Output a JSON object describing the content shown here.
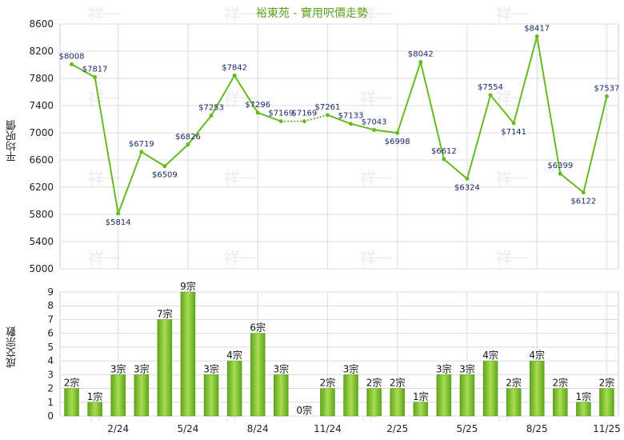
{
  "chart_data": [
    {
      "type": "line",
      "title": "裕東苑 - 實用呎價走勢",
      "ylabel": "平均呎價",
      "ylim": [
        5000,
        8600
      ],
      "yticks": [
        5000,
        5400,
        5800,
        6200,
        6600,
        7000,
        7400,
        7800,
        8200,
        8600
      ],
      "xtick_labels": [
        "2/24",
        "5/24",
        "8/24",
        "11/24",
        "2/25",
        "5/25",
        "8/25",
        "11/25"
      ],
      "x": [
        "12/23",
        "1/24",
        "2/24",
        "3/24",
        "4/24",
        "5/24",
        "6/24",
        "7/24",
        "8/24",
        "9/24",
        "10/24",
        "11/24",
        "12/24",
        "1/25",
        "2/25",
        "3/25",
        "4/25",
        "5/25",
        "6/25",
        "7/25",
        "8/25",
        "9/25",
        "10/25",
        "11/25"
      ],
      "values": [
        8008,
        7817,
        5814,
        6719,
        6509,
        6826,
        7253,
        7842,
        7296,
        7169,
        7169,
        7261,
        7133,
        7043,
        6998,
        8042,
        6612,
        6324,
        7554,
        7141,
        8417,
        6399,
        6122,
        7537
      ],
      "data_labels": [
        "$8008",
        "$7817",
        "$5814",
        "$6719",
        "$6509",
        "$6826",
        "$7253",
        "$7842",
        "$7296",
        "$7169",
        "$7169",
        "$7261",
        "$7133",
        "$7043",
        "$6998",
        "$8042",
        "$6612",
        "$6324",
        "$7554",
        "$7141",
        "$8417",
        "$6399",
        "$6122",
        "$7537"
      ],
      "carried_forward": [
        10
      ],
      "line_color": "#66bb22",
      "grid": true,
      "watermark": "祥一"
    },
    {
      "type": "bar",
      "ylabel": "成交宗數",
      "ylim": [
        0,
        9
      ],
      "yticks": [
        0,
        1,
        2,
        3,
        4,
        5,
        6,
        7,
        8,
        9
      ],
      "xtick_labels": [
        "2/24",
        "5/24",
        "8/24",
        "11/24",
        "2/25",
        "5/25",
        "8/25",
        "11/25"
      ],
      "x": [
        "12/23",
        "1/24",
        "2/24",
        "3/24",
        "4/24",
        "5/24",
        "6/24",
        "7/24",
        "8/24",
        "9/24",
        "10/24",
        "11/24",
        "12/24",
        "1/25",
        "2/25",
        "3/25",
        "4/25",
        "5/25",
        "6/25",
        "7/25",
        "8/25",
        "9/25",
        "10/25",
        "11/25"
      ],
      "values": [
        2,
        1,
        3,
        3,
        7,
        9,
        3,
        4,
        6,
        3,
        0,
        2,
        3,
        2,
        2,
        1,
        3,
        3,
        4,
        2,
        4,
        2,
        1,
        2
      ],
      "data_labels": [
        "2宗",
        "1宗",
        "3宗",
        "3宗",
        "7宗",
        "9宗",
        "3宗",
        "4宗",
        "6宗",
        "3宗",
        "0宗",
        "2宗",
        "3宗",
        "2宗",
        "2宗",
        "1宗",
        "3宗",
        "3宗",
        "4宗",
        "2宗",
        "4宗",
        "2宗",
        "1宗",
        "2宗"
      ],
      "bar_color": "#7cc22a",
      "grid": true,
      "watermark": "祥一"
    }
  ]
}
